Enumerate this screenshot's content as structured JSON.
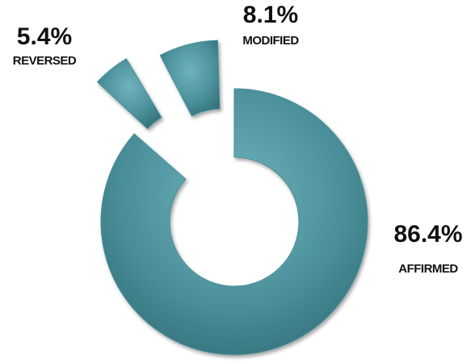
{
  "chart_data": {
    "type": "donut",
    "categories": [
      "AFFIRMED",
      "MODIFIED",
      "REVERSED"
    ],
    "values": [
      86.4,
      8.1,
      5.4
    ],
    "value_labels": [
      "86.4%",
      "8.1%",
      "5.4%"
    ],
    "color": "#4a8f99"
  }
}
